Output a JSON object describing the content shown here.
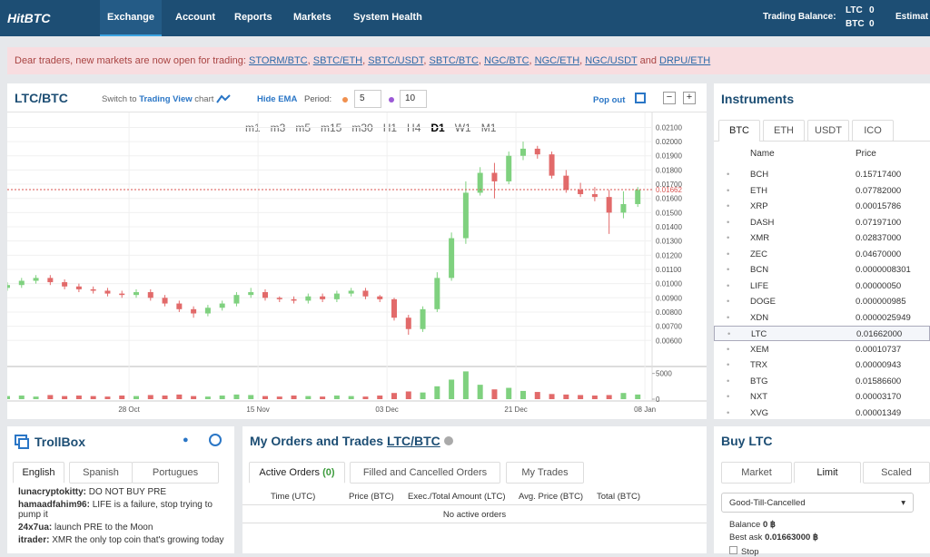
{
  "nav": {
    "logo": "HitBTC",
    "items": [
      "Exchange",
      "Account",
      "Reports",
      "Markets",
      "System Health"
    ],
    "balance_label": "Trading Balance:",
    "balances": [
      {
        "currency": "LTC",
        "amount": "0"
      },
      {
        "currency": "BTC",
        "amount": "0"
      }
    ],
    "estimate": "Estimat"
  },
  "alert": {
    "prefix": "Dear traders, new markets are now open for trading:",
    "links": [
      "STORM/BTC",
      "SBTC/ETH",
      "SBTC/USDT",
      "SBTC/BTC",
      "NGC/BTC",
      "NGC/ETH",
      "NGC/USDT"
    ],
    "conjunction": "and",
    "last_link": "DRPU/ETH"
  },
  "chart_panel": {
    "symbol": "LTC/BTC",
    "switch_prefix": "Switch to",
    "switch_link": "Trading View",
    "switch_suffix": "chart",
    "hide_ema": "Hide EMA",
    "period_label": "Period:",
    "period_fast": "5",
    "period_slow": "10",
    "pop_out": "Pop out"
  },
  "chart_data": {
    "type": "candlestick",
    "timeframes": [
      "m1",
      "m3",
      "m5",
      "m15",
      "m30",
      "H1",
      "H4",
      "D1",
      "W1",
      "M1"
    ],
    "active_timeframe": "D1",
    "x": [
      0,
      2,
      4,
      6,
      8,
      10,
      12,
      14,
      16,
      18,
      20,
      22,
      24,
      26,
      28,
      30,
      32,
      34,
      36,
      38,
      40,
      42,
      44,
      46,
      48,
      50,
      52,
      54,
      56,
      58,
      60,
      62,
      64,
      66,
      68,
      70,
      72,
      74,
      76,
      78,
      80,
      82,
      84,
      86,
      88
    ],
    "open": [
      0.0097,
      0.0099,
      0.0102,
      0.0104,
      0.0101,
      0.0098,
      0.0096,
      0.0095,
      0.0093,
      0.0092,
      0.0094,
      0.009,
      0.0086,
      0.0082,
      0.0079,
      0.0083,
      0.0086,
      0.0092,
      0.0094,
      0.009,
      0.0089,
      0.0088,
      0.0091,
      0.0089,
      0.0093,
      0.0095,
      0.0091,
      0.0089,
      0.0076,
      0.0068,
      0.0082,
      0.0104,
      0.0132,
      0.0164,
      0.0178,
      0.0172,
      0.019,
      0.0195,
      0.0191,
      0.0176,
      0.0166,
      0.0163,
      0.0161,
      0.015,
      0.0156
    ],
    "high": [
      0.0101,
      0.0104,
      0.0106,
      0.0106,
      0.0103,
      0.01,
      0.0098,
      0.0097,
      0.0095,
      0.0096,
      0.0096,
      0.0092,
      0.0088,
      0.0084,
      0.0085,
      0.0088,
      0.0094,
      0.0097,
      0.0096,
      0.0091,
      0.0091,
      0.0093,
      0.0093,
      0.0095,
      0.0097,
      0.0097,
      0.0092,
      0.009,
      0.0078,
      0.0084,
      0.0108,
      0.0136,
      0.0172,
      0.0182,
      0.0185,
      0.0193,
      0.02,
      0.0197,
      0.0193,
      0.018,
      0.0171,
      0.0168,
      0.0166,
      0.0165,
      0.0168
    ],
    "low": [
      0.0095,
      0.0097,
      0.01,
      0.0099,
      0.0096,
      0.0094,
      0.0093,
      0.0091,
      0.009,
      0.009,
      0.0088,
      0.0084,
      0.008,
      0.0076,
      0.0077,
      0.0081,
      0.0084,
      0.009,
      0.0088,
      0.0087,
      0.0086,
      0.0086,
      0.0087,
      0.0087,
      0.0091,
      0.0089,
      0.0087,
      0.0074,
      0.0064,
      0.0066,
      0.008,
      0.0102,
      0.0128,
      0.0162,
      0.016,
      0.017,
      0.0187,
      0.0188,
      0.0174,
      0.0164,
      0.0161,
      0.0158,
      0.0135,
      0.0146,
      0.0154
    ],
    "close": [
      0.0099,
      0.0102,
      0.0104,
      0.0101,
      0.0098,
      0.0096,
      0.0095,
      0.0093,
      0.0092,
      0.0094,
      0.009,
      0.0086,
      0.0082,
      0.0079,
      0.0083,
      0.0086,
      0.0092,
      0.0094,
      0.009,
      0.0089,
      0.0088,
      0.0091,
      0.0089,
      0.0093,
      0.0095,
      0.0091,
      0.0089,
      0.0076,
      0.0068,
      0.0082,
      0.0104,
      0.0132,
      0.0164,
      0.0178,
      0.0172,
      0.019,
      0.0195,
      0.0191,
      0.0176,
      0.0166,
      0.0163,
      0.0161,
      0.015,
      0.0156,
      0.0166
    ],
    "volume": [
      600,
      700,
      500,
      800,
      600,
      700,
      600,
      500,
      700,
      600,
      800,
      700,
      900,
      600,
      500,
      700,
      900,
      800,
      600,
      500,
      700,
      600,
      500,
      700,
      600,
      500,
      700,
      1200,
      1500,
      1300,
      2500,
      3800,
      5400,
      2800,
      1900,
      2200,
      1600,
      1400,
      1000,
      900,
      800,
      700,
      800,
      1200,
      900
    ],
    "up_color": "#7fd17f",
    "down_color": "#e26a6a",
    "last_price_color": "#d9534f",
    "xlim": [
      0,
      90
    ],
    "xticks": [
      {
        "value": 17,
        "label": "28 Oct"
      },
      {
        "value": 35,
        "label": "15 Nov"
      },
      {
        "value": 53,
        "label": "03 Dec"
      },
      {
        "value": 71,
        "label": "21 Dec"
      },
      {
        "value": 89,
        "label": "08 Jan"
      }
    ],
    "ylim": [
      0.00442,
      0.02205
    ],
    "yticks": [
      {
        "value": 0.006,
        "label": "0.00600"
      },
      {
        "value": 0.007,
        "label": "0.00700"
      },
      {
        "value": 0.008,
        "label": "0.00800"
      },
      {
        "value": 0.009,
        "label": "0.00900"
      },
      {
        "value": 0.01,
        "label": "0.01000"
      },
      {
        "value": 0.011,
        "label": "0.01100"
      },
      {
        "value": 0.012,
        "label": "0.01200"
      },
      {
        "value": 0.013,
        "label": "0.01300"
      },
      {
        "value": 0.014,
        "label": "0.01400"
      },
      {
        "value": 0.015,
        "label": "0.01500"
      },
      {
        "value": 0.016,
        "label": "0.01600"
      },
      {
        "value": 0.017,
        "label": "0.01700"
      },
      {
        "value": 0.018,
        "label": "0.01800"
      },
      {
        "value": 0.019,
        "label": "0.01900"
      },
      {
        "value": 0.02,
        "label": "0.02000"
      },
      {
        "value": 0.021,
        "label": "0.02100"
      }
    ],
    "last_price": {
      "value": 0.01662,
      "label": "0.01662"
    },
    "volume_ylim": [
      0,
      6000
    ],
    "volume_ticks": [
      0,
      5000
    ],
    "grid": true
  },
  "instruments": {
    "title": "Instruments",
    "tabs": [
      "BTC",
      "ETH",
      "USDT",
      "ICO"
    ],
    "active_tab": "BTC",
    "headers": [
      "Name",
      "Price"
    ],
    "selected": "LTC",
    "rows": [
      [
        "BCH",
        "0.15717400"
      ],
      [
        "ETH",
        "0.07782000"
      ],
      [
        "XRP",
        "0.00015786"
      ],
      [
        "DASH",
        "0.07197100"
      ],
      [
        "XMR",
        "0.02837000"
      ],
      [
        "ZEC",
        "0.04670000"
      ],
      [
        "BCN",
        "0.0000008301"
      ],
      [
        "LIFE",
        "0.00000050"
      ],
      [
        "DOGE",
        "0.000000985"
      ],
      [
        "XDN",
        "0.0000025949"
      ],
      [
        "LTC",
        "0.01662000"
      ],
      [
        "XEM",
        "0.00010737"
      ],
      [
        "TRX",
        "0.00000943"
      ],
      [
        "BTG",
        "0.01586600"
      ],
      [
        "NXT",
        "0.00003170"
      ],
      [
        "XVG",
        "0.00001349"
      ]
    ]
  },
  "trollbox": {
    "title": "TrollBox",
    "tabs": [
      "English",
      "Spanish",
      "Portugues"
    ],
    "active_tab": "English",
    "messages": [
      {
        "user": "lunacryptokitty:",
        "text": "DO NOT BUY PRE"
      },
      {
        "user": "hamaadfahim96:",
        "text": "LIFE is a failure, stop trying to pump it"
      },
      {
        "user": "24x7ua:",
        "text": "launch PRE to the Moon"
      },
      {
        "user": "itrader:",
        "text": "XMR the only top coin that's growing today"
      }
    ]
  },
  "orders": {
    "title": "My Orders and Trades",
    "symbol": "LTC/BTC",
    "tabs": [
      "Active Orders",
      "Filled and Cancelled Orders",
      "My Trades"
    ],
    "active_count": "(0)",
    "headers": [
      "Time (UTC)",
      "Price (BTC)",
      "Exec./Total Amount (LTC)",
      "Avg. Price (BTC)",
      "Total (BTC)"
    ],
    "empty": "No active orders"
  },
  "buy": {
    "title": "Buy LTC",
    "tabs": [
      "Market",
      "Limit",
      "Scaled"
    ],
    "active_tab": "Limit",
    "time_in_force": "Good-Till-Cancelled",
    "balance_label": "Balance",
    "balance_value": "0 ฿",
    "best_ask_label": "Best ask",
    "best_ask_value": "0.01663000 ฿",
    "stop": "Stop"
  }
}
